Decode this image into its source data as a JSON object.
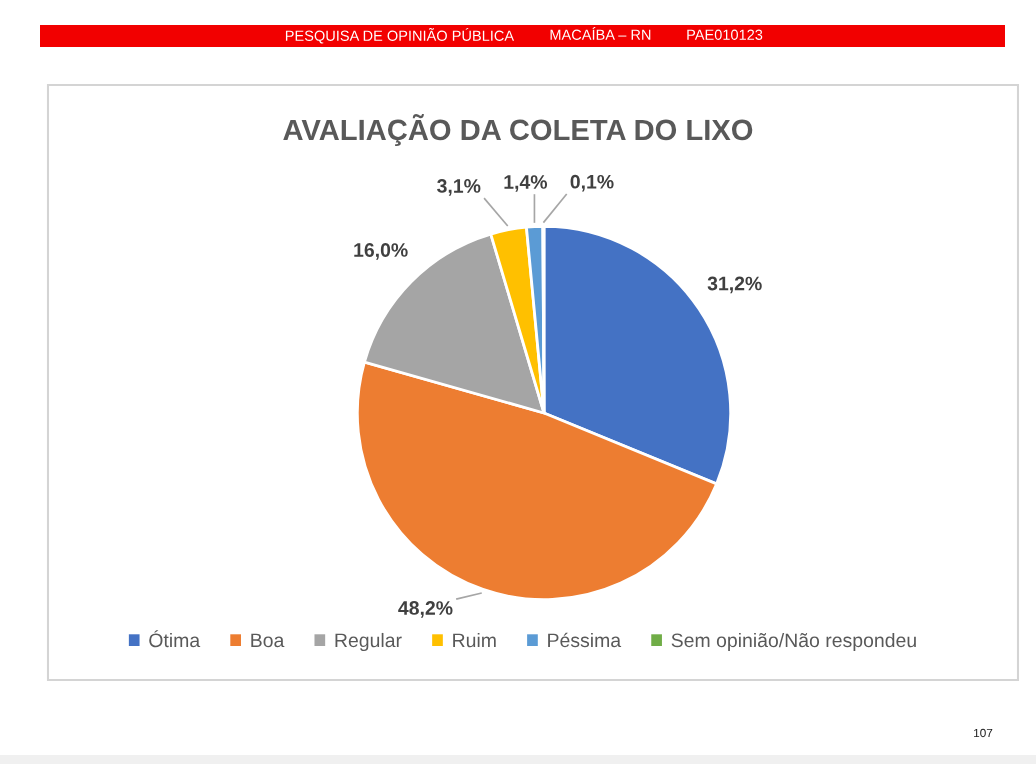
{
  "chart_data": {
    "type": "pie",
    "title": "AVALIAÇÃO DA COLETA DO LIXO",
    "categories": [
      "Ótima",
      "Boa",
      "Regular",
      "Ruim",
      "Péssima",
      "Sem opinião/Não respondeu"
    ],
    "values": [
      31.2,
      48.2,
      16.0,
      3.1,
      1.4,
      0.1
    ],
    "colors": [
      "#4472c4",
      "#ed7d31",
      "#a5a5a5",
      "#ffc000",
      "#5b9bd5",
      "#70ad47"
    ],
    "value_labels": [
      "31,2%",
      "48,2%",
      "16,0%",
      "3,1%",
      "1,4%",
      "0,1%"
    ],
    "legend": "bottom",
    "annotations": [
      "PESQUISA DE OPINIÃO PÚBLICA",
      "MACAÍBA – RN",
      "PAE010123",
      "107"
    ]
  }
}
